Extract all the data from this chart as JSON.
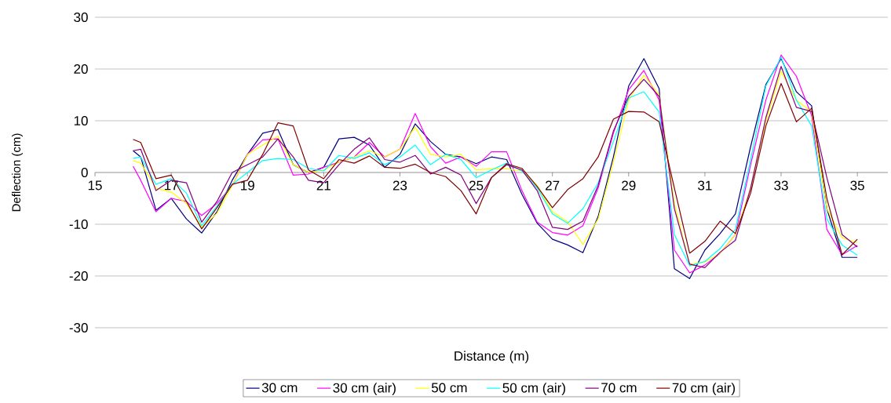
{
  "chart_data": {
    "type": "line",
    "xlabel": "Distance (m)",
    "ylabel": "Deflection (cm)",
    "x": [
      16.0,
      16.2,
      16.6,
      17.0,
      17.4,
      17.8,
      18.2,
      18.6,
      19.0,
      19.4,
      19.8,
      20.2,
      20.6,
      21.0,
      21.4,
      21.8,
      22.2,
      22.6,
      23.0,
      23.4,
      23.8,
      24.2,
      24.6,
      25.0,
      25.4,
      25.8,
      26.2,
      26.6,
      27.0,
      27.4,
      27.8,
      28.2,
      28.6,
      29.0,
      29.4,
      29.8,
      30.2,
      30.6,
      31.0,
      31.4,
      31.8,
      32.2,
      32.6,
      33.0,
      33.4,
      33.8,
      34.2,
      34.6,
      35.0
    ],
    "series": [
      {
        "name": "30 cm",
        "color": "#000080",
        "values": [
          4.2,
          3,
          -7.3,
          -5,
          -9,
          -11.7,
          -7.6,
          -1.5,
          3.5,
          7.6,
          8.3,
          1.5,
          0,
          1,
          6.5,
          6.8,
          5.3,
          1,
          3.5,
          9.4,
          6,
          3.5,
          3,
          1.7,
          3,
          2.5,
          -4.2,
          -9.8,
          -12.9,
          -14,
          -15.5,
          -8.5,
          3,
          16.7,
          22,
          16.2,
          -18.6,
          -20.5,
          -15,
          -11.8,
          -8,
          5,
          17,
          22,
          15.6,
          12.9,
          -7,
          -16.4,
          -16.4
        ]
      },
      {
        "name": "30 cm (air)",
        "color": "#ff00ff",
        "values": [
          1.2,
          -1.5,
          -7.6,
          -5,
          -5.6,
          -8.3,
          -6,
          -2.5,
          3.5,
          6.3,
          6.5,
          -0.5,
          -0.3,
          1,
          2,
          3,
          5.8,
          3,
          4.5,
          11.4,
          5,
          1.8,
          3,
          1.2,
          4,
          4,
          -3.5,
          -9.6,
          -11.6,
          -12.1,
          -10.3,
          -3,
          7.6,
          16,
          19.7,
          14,
          -15,
          -19.4,
          -17.9,
          -15.6,
          -12,
          1.5,
          14,
          22.7,
          18.6,
          11,
          -11,
          -15.9,
          -14.1
        ]
      },
      {
        "name": "50 cm",
        "color": "#ffff00",
        "values": [
          2.3,
          1.8,
          -3,
          -3.8,
          -6,
          -10.6,
          -7.9,
          -2.5,
          3.5,
          5.3,
          7,
          1.5,
          0,
          0.5,
          2,
          3,
          4.2,
          3,
          4.5,
          8.8,
          3.5,
          3,
          3.5,
          0.5,
          0.7,
          0.7,
          0.3,
          -2.5,
          -7.6,
          -9.5,
          -13.9,
          -9,
          2,
          14,
          18.8,
          15,
          -6,
          -17.7,
          -17.3,
          -15.6,
          -12,
          -3,
          10,
          19.5,
          14,
          11.7,
          -7,
          -12.6,
          -13.6
        ]
      },
      {
        "name": "50 cm (air)",
        "color": "#00ffff",
        "values": [
          2.7,
          3,
          -2.3,
          -1.2,
          -4,
          -10.3,
          -6.5,
          -2.3,
          0,
          2.3,
          2.7,
          2.5,
          0.8,
          0.3,
          3.3,
          2.7,
          3.8,
          1.5,
          3,
          5.3,
          1.5,
          3.5,
          2.5,
          -1,
          0.5,
          1.8,
          0.3,
          -3,
          -8,
          -9.8,
          -7,
          -2,
          6,
          14.4,
          15.6,
          11.7,
          -12,
          -18,
          -17.2,
          -14.7,
          -11,
          2.5,
          16.7,
          22.3,
          14,
          9,
          -9,
          -14,
          -16
        ]
      },
      {
        "name": "70 cm",
        "color": "#800080",
        "values": [
          4.2,
          4.5,
          -3.5,
          -1.5,
          -2,
          -9.6,
          -5.6,
          0,
          1.5,
          3,
          6.5,
          3,
          -1.5,
          -2,
          1.5,
          4.5,
          6.7,
          2.5,
          2,
          3.3,
          -0.3,
          1,
          -0.5,
          -6,
          -1,
          1.5,
          0.5,
          -3.5,
          -10.6,
          -11,
          -9.4,
          -2.5,
          8,
          14.7,
          18,
          14.7,
          -7,
          -17.7,
          -18.4,
          -15.4,
          -13.1,
          -3,
          10.6,
          20.5,
          12.6,
          11.8,
          -1,
          -12,
          -14.4
        ]
      },
      {
        "name": "70 cm (air)",
        "color": "#800000",
        "values": [
          6.4,
          5.8,
          -1.2,
          -0.5,
          -5.6,
          -10.9,
          -6.8,
          -2.3,
          -1.5,
          3.5,
          9.6,
          9,
          0.5,
          -1.2,
          2.5,
          1.8,
          3.2,
          1,
          0.8,
          1.6,
          0,
          -0.8,
          -3.5,
          -8,
          -1,
          1.7,
          0.8,
          -2.7,
          -6.8,
          -3.3,
          -1.2,
          3,
          10.3,
          11.8,
          11.7,
          9.8,
          -3,
          -15.6,
          -13.3,
          -9.4,
          -11.8,
          -4,
          9,
          17.2,
          9.8,
          12.4,
          -5,
          -15.9,
          -12.9
        ]
      }
    ],
    "xlim": [
      15,
      35.8
    ],
    "ylim": [
      -30,
      30
    ],
    "xticks": [
      15,
      17,
      19,
      21,
      23,
      25,
      27,
      29,
      31,
      33,
      35
    ],
    "yticks": [
      -30,
      -20,
      -10,
      0,
      10,
      20,
      30
    ],
    "grid": "y",
    "legend": "bottom"
  }
}
